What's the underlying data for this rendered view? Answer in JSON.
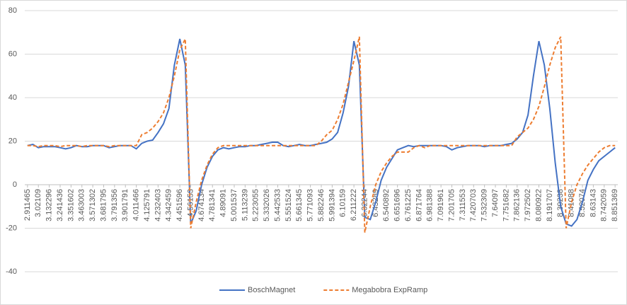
{
  "chart_data": {
    "type": "line",
    "categories": [
      "2.911465",
      null,
      "3.02109",
      null,
      "3.132296",
      null,
      "3.241436",
      null,
      "3.351602",
      null,
      "3.463003",
      null,
      "3.571302",
      null,
      "3.681795",
      null,
      "3.791356",
      null,
      "3.901791",
      null,
      "4.011466",
      null,
      "4.125791",
      null,
      "4.232403",
      null,
      "4.342459",
      null,
      "4.451596",
      null,
      "4.56153",
      null,
      "4.674134",
      null,
      "4.781341",
      null,
      "4.89091",
      null,
      "5.001537",
      null,
      "5.113239",
      null,
      "5.223055",
      null,
      "5.332026",
      null,
      "5.442533",
      null,
      "5.551524",
      null,
      "5.661345",
      null,
      "5.771093",
      null,
      "5.882246",
      null,
      "5.991394",
      null,
      "6.10159",
      null,
      "6.211222",
      null,
      "6.32244",
      null,
      "6.43289",
      null,
      "6.540892",
      null,
      "6.651696",
      null,
      "6.761225",
      null,
      "6.871764",
      null,
      "6.981388",
      null,
      "7.091961",
      null,
      "7.201705",
      null,
      "7.311553",
      null,
      "7.420703",
      null,
      "7.532309",
      null,
      "7.64097",
      null,
      "7.751682",
      null,
      "7.862136",
      null,
      "7.972502",
      null,
      "8.080922",
      null,
      "8.191707",
      null,
      "8.30238",
      null,
      "8.41088",
      null,
      "8.52074",
      null,
      "8.63143",
      null,
      "8.742059",
      null,
      "8.851369"
    ],
    "series": [
      {
        "name": "BoschMagnet",
        "color": "#4472c4",
        "dash": false,
        "values": [
          18,
          18.5,
          17,
          17.5,
          17.5,
          17.5,
          17,
          16.5,
          17,
          18,
          17.5,
          17.5,
          18,
          18,
          18,
          17,
          17.5,
          18,
          18,
          18,
          16.5,
          19,
          20,
          20.5,
          24,
          28,
          35,
          55,
          67,
          55,
          -18,
          -12,
          0,
          8,
          13,
          16,
          17,
          16.5,
          17,
          17.5,
          17.5,
          18,
          18,
          18.5,
          19,
          19.5,
          19.5,
          18,
          17.5,
          18,
          18.5,
          18,
          18,
          18.5,
          19,
          19.5,
          21,
          24,
          33,
          45,
          66,
          55,
          -15,
          -16,
          -8,
          2,
          8,
          12,
          16,
          17,
          18,
          17.5,
          18,
          18,
          18,
          18,
          18,
          17.5,
          16,
          17,
          17.5,
          18,
          18,
          18,
          17.5,
          18,
          18,
          18,
          18.5,
          19,
          21,
          24,
          32,
          50,
          66,
          55,
          35,
          10,
          -10,
          -18,
          -19,
          -16,
          -8,
          2,
          7,
          11,
          13,
          15,
          17
        ]
      },
      {
        "name": "Megabobra ExpRamp",
        "color": "#ed7d31",
        "dash": true,
        "values": [
          18,
          18,
          17.5,
          18,
          18,
          18,
          17.5,
          18,
          18,
          18,
          17.5,
          18,
          18,
          18,
          18,
          17.5,
          18,
          18,
          18,
          18,
          18,
          23,
          24,
          26,
          29,
          33,
          40,
          50,
          62,
          67,
          -20,
          -8,
          2,
          9,
          14,
          17,
          18,
          18,
          18,
          18,
          18,
          18,
          18,
          18,
          18,
          18,
          18,
          18,
          18,
          18,
          18,
          18,
          18,
          18,
          20,
          23,
          25,
          30,
          37,
          47,
          57,
          68,
          -22,
          -10,
          0,
          6,
          10,
          13,
          15,
          15,
          15,
          17,
          18,
          17,
          18,
          18,
          18,
          18,
          18,
          18,
          18,
          18,
          18,
          18,
          18,
          18,
          18,
          18,
          18,
          18,
          22,
          24,
          26,
          30,
          36,
          45,
          55,
          63,
          68,
          -20,
          -8,
          0,
          5,
          9,
          12,
          15,
          17,
          18,
          18
        ]
      }
    ],
    "ylim": [
      -40,
      80
    ],
    "yticks": [
      -40,
      -20,
      0,
      20,
      40,
      60,
      80
    ],
    "grid": true,
    "legend": "bottom"
  }
}
